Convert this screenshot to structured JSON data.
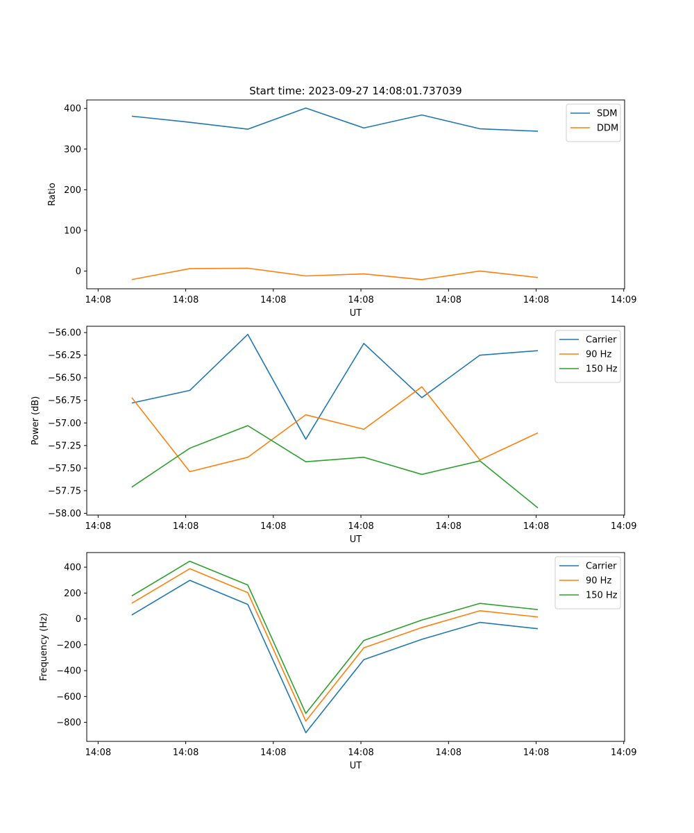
{
  "figure": {
    "title": "Start time: 2023-09-27 14:08:01.737039"
  },
  "colors": {
    "blue": "#1f77b4",
    "orange": "#ff7f0e",
    "green": "#2ca02c"
  },
  "chart_data": [
    {
      "type": "line",
      "title": "Start time: 2023-09-27 14:08:01.737039",
      "xlabel": "UT",
      "ylabel": "Ratio",
      "x": [
        0,
        1,
        2,
        3,
        4,
        5,
        6,
        7
      ],
      "xlim": [
        -0.776,
        8.495
      ],
      "x_ticks": [
        -0.58,
        0.93,
        2.44,
        3.95,
        5.46,
        6.97,
        8.48
      ],
      "x_tick_labels": [
        "14:08",
        "14:08",
        "14:08",
        "14:08",
        "14:08",
        "14:08",
        "14:09"
      ],
      "ylim": [
        -43.6,
        420.9
      ],
      "y_ticks": [
        0,
        100,
        200,
        300,
        400
      ],
      "y_tick_labels": [
        "0",
        "100",
        "200",
        "300",
        "400"
      ],
      "legend": "top-right",
      "series": [
        {
          "name": "SDM",
          "color": "#1f77b4",
          "values": [
            381,
            366,
            349,
            401,
            352,
            384,
            350,
            344
          ]
        },
        {
          "name": "DDM",
          "color": "#ff7f0e",
          "values": [
            -21,
            6,
            7,
            -12,
            -7,
            -21,
            0,
            -16
          ]
        }
      ]
    },
    {
      "type": "line",
      "xlabel": "UT",
      "ylabel": "Power (dB)",
      "x": [
        0,
        1,
        2,
        3,
        4,
        5,
        6,
        7
      ],
      "xlim": [
        -0.776,
        8.495
      ],
      "x_ticks": [
        -0.58,
        0.93,
        2.44,
        3.95,
        5.46,
        6.97,
        8.48
      ],
      "x_tick_labels": [
        "14:08",
        "14:08",
        "14:08",
        "14:08",
        "14:08",
        "14:08",
        "14:09"
      ],
      "ylim": [
        -58.02,
        -55.93
      ],
      "y_ticks": [
        -56.0,
        -56.25,
        -56.5,
        -56.75,
        -57.0,
        -57.25,
        -57.5,
        -57.75,
        -58.0
      ],
      "y_tick_labels": [
        "−56.00",
        "−56.25",
        "−56.50",
        "−56.75",
        "−57.00",
        "−57.25",
        "−57.50",
        "−57.75",
        "−58.00"
      ],
      "legend": "top-right",
      "series": [
        {
          "name": "Carrier",
          "color": "#1f77b4",
          "values": [
            -56.78,
            -56.64,
            -56.02,
            -57.18,
            -56.12,
            -56.72,
            -56.25,
            -56.2
          ]
        },
        {
          "name": "90 Hz",
          "color": "#ff7f0e",
          "values": [
            -56.72,
            -57.54,
            -57.38,
            -56.91,
            -57.07,
            -56.6,
            -57.41,
            -57.11
          ]
        },
        {
          "name": "150 Hz",
          "color": "#2ca02c",
          "values": [
            -57.71,
            -57.28,
            -57.03,
            -57.43,
            -57.38,
            -57.57,
            -57.42,
            -57.94
          ]
        }
      ]
    },
    {
      "type": "line",
      "xlabel": "UT",
      "ylabel": "Frequency (Hz)",
      "x": [
        0,
        1,
        2,
        3,
        4,
        5,
        6,
        7
      ],
      "xlim": [
        -0.776,
        8.495
      ],
      "x_ticks": [
        -0.58,
        0.93,
        2.44,
        3.95,
        5.46,
        6.97,
        8.48
      ],
      "x_tick_labels": [
        "14:08",
        "14:08",
        "14:08",
        "14:08",
        "14:08",
        "14:08",
        "14:09"
      ],
      "ylim": [
        -947,
        513
      ],
      "y_ticks": [
        400,
        200,
        0,
        -200,
        -400,
        -600,
        -800
      ],
      "y_tick_labels": [
        "400",
        "200",
        "0",
        "−200",
        "−400",
        "−600",
        "−800"
      ],
      "legend": "top-right",
      "series": [
        {
          "name": "Carrier",
          "color": "#1f77b4",
          "values": [
            30,
            298,
            112,
            -880,
            -315,
            -158,
            -27,
            -76
          ]
        },
        {
          "name": "90 Hz",
          "color": "#ff7f0e",
          "values": [
            121,
            388,
            203,
            -790,
            -224,
            -67,
            63,
            15
          ]
        },
        {
          "name": "150 Hz",
          "color": "#2ca02c",
          "values": [
            178,
            446,
            262,
            -731,
            -167,
            -9,
            120,
            72
          ]
        }
      ]
    }
  ]
}
